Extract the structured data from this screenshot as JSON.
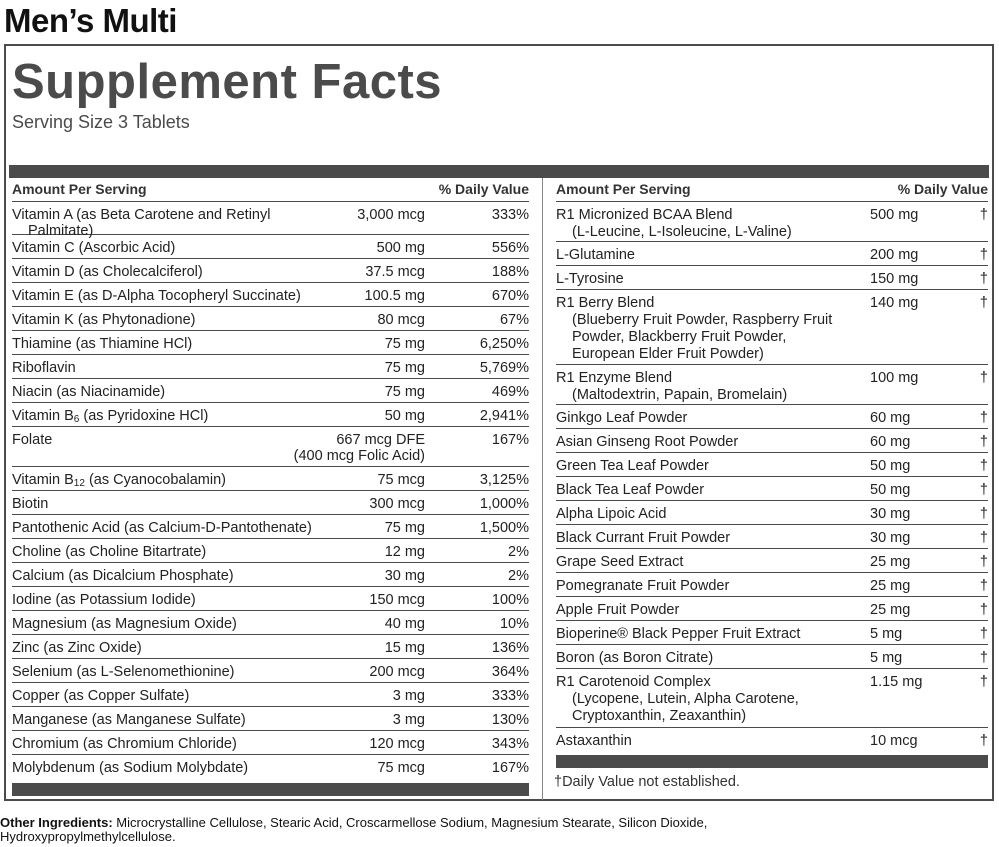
{
  "product_title": "Men’s Multi",
  "panel_title": "Supplement Facts",
  "serving_size": "Serving Size 3 Tablets",
  "left": {
    "head_name": "Amount Per Serving",
    "head_dv": "% Daily Value",
    "rows": [
      {
        "name": "Vitamin A (as Beta Carotene and Retinyl",
        "name2": "Palmitate)",
        "amount": "3,000 mcg",
        "dv": "333%"
      },
      {
        "name": "Vitamin C (Ascorbic Acid)",
        "amount": "500 mg",
        "dv": "556%"
      },
      {
        "name": "Vitamin D (as Cholecalciferol)",
        "amount": "37.5 mcg",
        "dv": "188%"
      },
      {
        "name": "Vitamin E (as D-Alpha Tocopheryl Succinate)",
        "amount": "100.5 mg",
        "dv": "670%"
      },
      {
        "name": "Vitamin K (as Phytonadione)",
        "amount": "80 mcg",
        "dv": "67%"
      },
      {
        "name": "Thiamine (as Thiamine HCl)",
        "amount": "75 mg",
        "dv": "6,250%"
      },
      {
        "name": "Riboflavin",
        "amount": "75 mg",
        "dv": "5,769%"
      },
      {
        "name": "Niacin (as Niacinamide)",
        "amount": "75 mg",
        "dv": "469%"
      },
      {
        "name_pre": "Vitamin B",
        "name_sub": "6",
        "name_post": " (as Pyridoxine HCl)",
        "amount": "50 mg",
        "dv": "2,941%"
      },
      {
        "name": "Folate",
        "amount": "667 mcg DFE",
        "amount2": "(400 mcg Folic Acid)",
        "dv": "167%"
      },
      {
        "name_pre": "Vitamin B",
        "name_sub": "12",
        "name_post": " (as Cyanocobalamin)",
        "amount": "75 mcg",
        "dv": "3,125%"
      },
      {
        "name": "Biotin",
        "amount": "300 mcg",
        "dv": "1,000%"
      },
      {
        "name": "Pantothenic Acid (as Calcium-D-Pantothenate)",
        "amount": "75 mg",
        "dv": "1,500%"
      },
      {
        "name": "Choline (as Choline Bitartrate)",
        "amount": "12 mg",
        "dv": "2%"
      },
      {
        "name": "Calcium (as Dicalcium Phosphate)",
        "amount": "30 mg",
        "dv": "2%"
      },
      {
        "name": "Iodine (as Potassium Iodide)",
        "amount": "150 mcg",
        "dv": "100%"
      },
      {
        "name": "Magnesium (as Magnesium Oxide)",
        "amount": "40 mg",
        "dv": "10%"
      },
      {
        "name": "Zinc (as Zinc Oxide)",
        "amount": "15 mg",
        "dv": "136%"
      },
      {
        "name": "Selenium (as L-Selenomethionine)",
        "amount": "200 mcg",
        "dv": "364%"
      },
      {
        "name": "Copper (as Copper Sulfate)",
        "amount": "3 mg",
        "dv": "333%"
      },
      {
        "name": "Manganese (as Manganese Sulfate)",
        "amount": "3 mg",
        "dv": "130%"
      },
      {
        "name": "Chromium (as Chromium Chloride)",
        "amount": "120 mcg",
        "dv": "343%"
      },
      {
        "name": "Molybdenum (as Sodium Molybdate)",
        "amount": "75 mcg",
        "dv": "167%"
      }
    ]
  },
  "right": {
    "head_name": "Amount Per Serving",
    "head_dv": "% Daily Value",
    "rows": [
      {
        "name": "R1 Micronized BCAA Blend",
        "sub": [
          "(L-Leucine, L-Isoleucine, L-Valine)"
        ],
        "amount": "500 mg",
        "dv": "†"
      },
      {
        "name": "L-Glutamine",
        "amount": "200 mg",
        "dv": "†"
      },
      {
        "name": "L-Tyrosine",
        "amount": "150 mg",
        "dv": "†"
      },
      {
        "name": "R1 Berry Blend",
        "sub": [
          "(Blueberry Fruit Powder, Raspberry Fruit",
          "Powder, Blackberry Fruit Powder,",
          "European Elder Fruit Powder)"
        ],
        "amount": "140 mg",
        "dv": "†"
      },
      {
        "name": "R1 Enzyme Blend",
        "sub": [
          "(Maltodextrin, Papain, Bromelain)"
        ],
        "amount": "100 mg",
        "dv": "†"
      },
      {
        "name": "Ginkgo Leaf Powder",
        "amount": "60 mg",
        "dv": "†"
      },
      {
        "name": "Asian Ginseng Root Powder",
        "amount": "60 mg",
        "dv": "†"
      },
      {
        "name": "Green Tea Leaf Powder",
        "amount": "50 mg",
        "dv": "†"
      },
      {
        "name": "Black Tea Leaf Powder",
        "amount": "50 mg",
        "dv": "†"
      },
      {
        "name": "Alpha Lipoic Acid",
        "amount": "30 mg",
        "dv": "†"
      },
      {
        "name": "Black Currant Fruit Powder",
        "amount": "30 mg",
        "dv": "†"
      },
      {
        "name": "Grape Seed Extract",
        "amount": "25 mg",
        "dv": "†"
      },
      {
        "name": "Pomegranate Fruit Powder",
        "amount": "25 mg",
        "dv": "†"
      },
      {
        "name": "Apple Fruit Powder",
        "amount": "25 mg",
        "dv": "†"
      },
      {
        "name": "Bioperine® Black Pepper Fruit Extract",
        "amount": "5 mg",
        "dv": "†"
      },
      {
        "name": "Boron (as Boron Citrate)",
        "amount": "5 mg",
        "dv": "†"
      },
      {
        "name": "R1 Carotenoid Complex",
        "sub": [
          "(Lycopene, Lutein, Alpha Carotene,",
          "Cryptoxanthin, Zeaxanthin)"
        ],
        "amount": "1.15 mg",
        "dv": "†"
      },
      {
        "name": "Astaxanthin",
        "amount": "10 mcg",
        "dv": "†"
      }
    ]
  },
  "footnote": "†Daily Value not established.",
  "other_label": "Other Ingredients:",
  "other_text": " Microcrystalline Cellulose, Stearic Acid, Croscarmellose Sodium, Magnesium Stearate, Silicon Dioxide,",
  "other_text2": "Hydroxypropylmethylcellulose."
}
